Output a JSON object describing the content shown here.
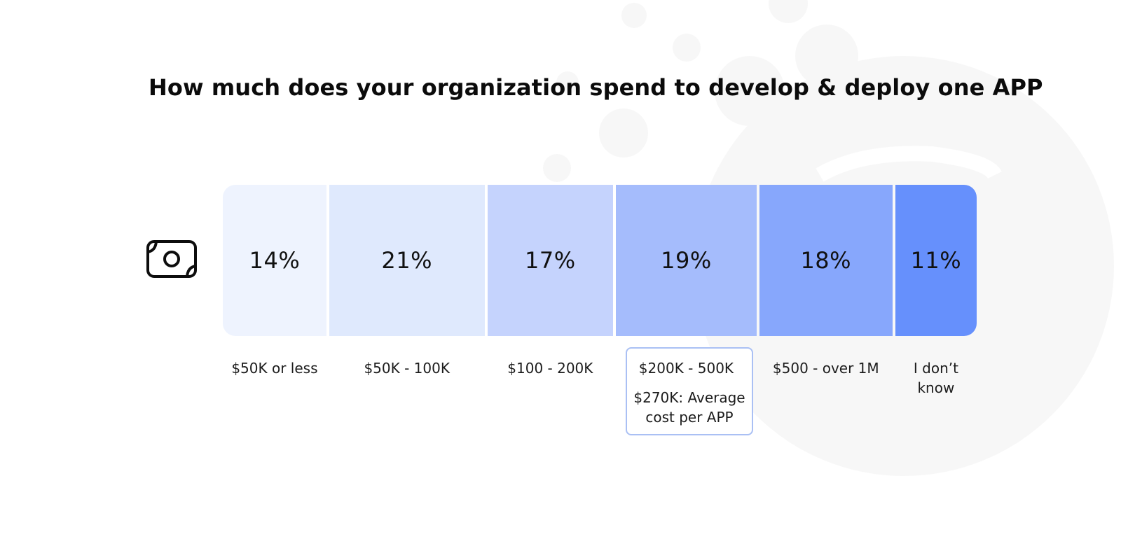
{
  "title": "How much does your organization spend to develop & deploy one APP",
  "icon": "money-bill-icon",
  "colors": {
    "segments": [
      "#eef3fe",
      "#dfe9fd",
      "#c5d3fd",
      "#a5bcfc",
      "#87a7fc",
      "#6690fc"
    ],
    "highlight_border": "#aac0f4"
  },
  "chart_data": {
    "type": "bar",
    "orientation": "stacked-horizontal",
    "title": "How much does your organization spend to develop & deploy one APP",
    "xlabel": "",
    "ylabel": "",
    "categories": [
      "$50K or less",
      "$50K - 100K",
      "$100 - 200K",
      "$200K - 500K",
      "$500 - over 1M",
      "I don’t know"
    ],
    "values": [
      14,
      21,
      17,
      19,
      18,
      11
    ],
    "value_labels": [
      "14%",
      "21%",
      "17%",
      "19%",
      "18%",
      "11%"
    ],
    "unit": "%",
    "annotation": {
      "category": "$200K - 500K",
      "text": "$270K: Average cost per APP"
    },
    "grid": false,
    "legend": "none"
  }
}
